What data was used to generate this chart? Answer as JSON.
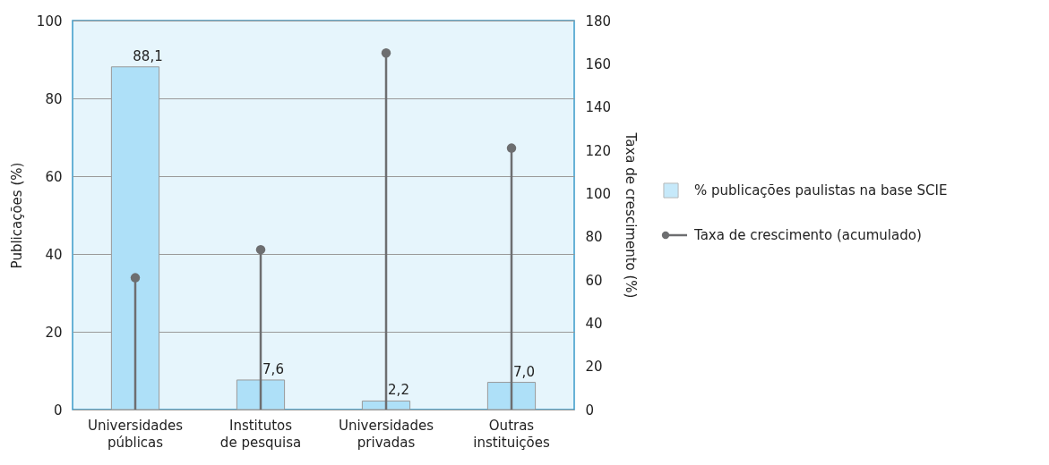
{
  "chart_data": {
    "type": "bar",
    "categories": [
      "Universidades públicas",
      "Institutos de pesquisa",
      "Universidades privadas",
      "Outras instituições"
    ],
    "ylabel": "Publicações (%)",
    "y2label": "Taxa de crescimento (%)",
    "ylim": [
      0,
      100
    ],
    "yticks": [
      0,
      20,
      40,
      60,
      80,
      100
    ],
    "y2lim": [
      0,
      180
    ],
    "y2ticks": [
      0,
      20,
      40,
      60,
      80,
      100,
      120,
      140,
      160,
      180
    ],
    "grid": "y",
    "legend": "right",
    "series": [
      {
        "name": "% publicações paulistas na base SCIE",
        "color": "#aee0f8",
        "values": [
          88.1,
          7.6,
          2.2,
          7.0
        ],
        "value_labels": [
          "88,1",
          "7,6",
          "2,2",
          "7,0"
        ]
      },
      {
        "name": "Taxa de crescimento (acumulado)",
        "type": "lollipop",
        "axis": "y2",
        "marker": "circle",
        "color": "#6d6e70",
        "values": [
          61,
          74,
          165,
          121
        ]
      }
    ]
  }
}
